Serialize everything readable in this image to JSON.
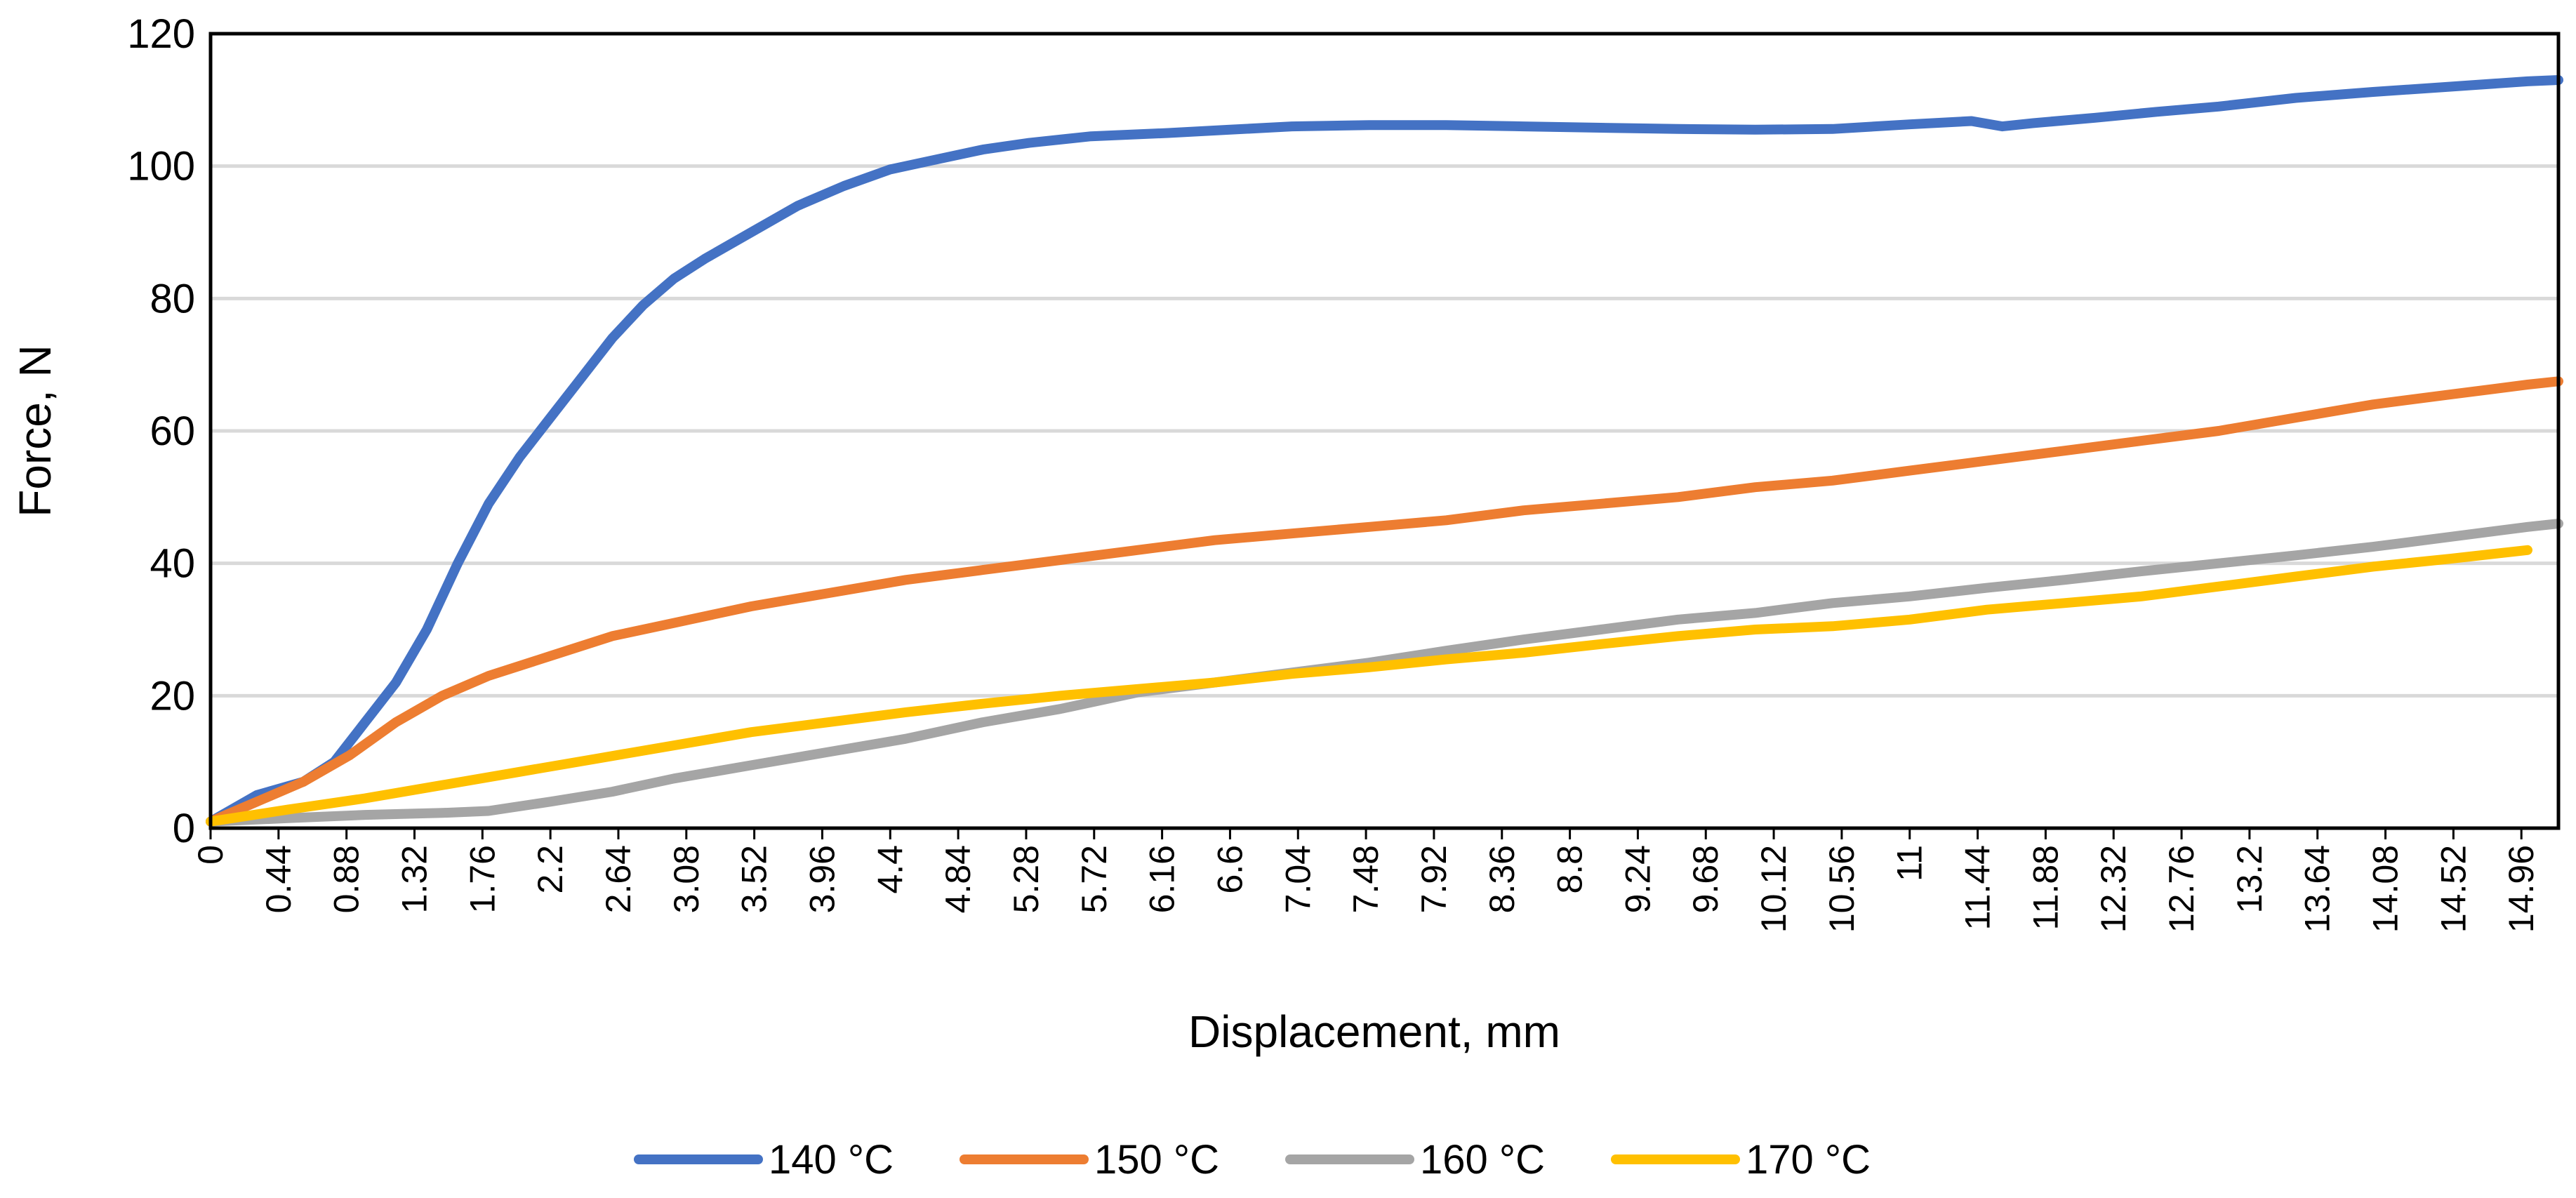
{
  "chart_data": {
    "type": "line",
    "title": "",
    "xlabel": "Displacement, mm",
    "ylabel": "Force, N",
    "ylim": [
      0,
      120
    ],
    "xlim": [
      0,
      15.2
    ],
    "yticks": [
      "0",
      "20",
      "40",
      "60",
      "80",
      "100",
      "120"
    ],
    "xtick_labels": [
      "0",
      "0.44",
      "0.88",
      "1.32",
      "1.76",
      "2.2",
      "2.64",
      "3.08",
      "3.52",
      "3.96",
      "4.4",
      "4.84",
      "5.28",
      "5.72",
      "6.16",
      "6.6",
      "7.04",
      "7.48",
      "7.92",
      "8.36",
      "8.8",
      "9.24",
      "9.68",
      "10.12",
      "10.56",
      "11",
      "11.44",
      "11.88",
      "12.32",
      "12.76",
      "13.2",
      "13.64",
      "14.08",
      "14.52",
      "14.96"
    ],
    "grid": true,
    "legend_position": "bottom",
    "series": [
      {
        "name": "140 °C",
        "color": "#4472C4",
        "x": [
          0,
          0.3,
          0.6,
          0.8,
          1.0,
          1.2,
          1.4,
          1.6,
          1.8,
          2.0,
          2.2,
          2.4,
          2.6,
          2.8,
          3.0,
          3.2,
          3.5,
          3.8,
          4.1,
          4.4,
          4.7,
          5.0,
          5.3,
          5.7,
          6.2,
          6.6,
          7.0,
          7.5,
          8.0,
          8.5,
          9.0,
          9.5,
          10.0,
          10.5,
          11.0,
          11.4,
          11.6,
          11.8,
          12.2,
          12.6,
          13.0,
          13.5,
          14.0,
          14.5,
          15.0,
          15.2
        ],
        "y": [
          1,
          5,
          7,
          10,
          16,
          22,
          30,
          40,
          49,
          56,
          62,
          68,
          74,
          79,
          83,
          86,
          90,
          94,
          97,
          99.5,
          101,
          102.5,
          103.5,
          104.5,
          105,
          105.5,
          106,
          106.2,
          106.2,
          106,
          105.8,
          105.6,
          105.5,
          105.6,
          106.3,
          106.8,
          106,
          106.5,
          107.3,
          108.2,
          109,
          110.3,
          111.2,
          112,
          112.8,
          113
        ]
      },
      {
        "name": "150 °C",
        "color": "#ED7D31",
        "x": [
          0,
          0.3,
          0.6,
          0.9,
          1.2,
          1.5,
          1.8,
          2.2,
          2.6,
          3.0,
          3.5,
          4.0,
          4.5,
          5.0,
          5.5,
          6.0,
          6.5,
          7.0,
          7.5,
          8.0,
          8.5,
          9.0,
          9.5,
          10.0,
          10.5,
          11.0,
          11.5,
          12.0,
          12.5,
          13.0,
          13.5,
          14.0,
          14.5,
          15.0,
          15.2
        ],
        "y": [
          1,
          4,
          7,
          11,
          16,
          20,
          23,
          26,
          29,
          31,
          33.5,
          35.5,
          37.5,
          39,
          40.5,
          42,
          43.5,
          44.5,
          45.5,
          46.5,
          48,
          49,
          50,
          51.5,
          52.5,
          54,
          55.5,
          57,
          58.5,
          60,
          62,
          64,
          65.5,
          67,
          67.5
        ]
      },
      {
        "name": "160 °C",
        "color": "#A5A5A5",
        "x": [
          0,
          0.5,
          1.0,
          1.5,
          1.8,
          2.2,
          2.6,
          3.0,
          3.5,
          4.0,
          4.5,
          5.0,
          5.5,
          6.0,
          6.5,
          7.0,
          7.5,
          8.0,
          8.5,
          9.0,
          9.5,
          10.0,
          10.5,
          11.0,
          11.5,
          12.0,
          12.5,
          13.0,
          13.5,
          14.0,
          14.5,
          15.0,
          15.2
        ],
        "y": [
          1,
          1.5,
          2,
          2.3,
          2.6,
          4,
          5.5,
          7.5,
          9.5,
          11.5,
          13.5,
          16,
          18,
          20.5,
          22,
          23.5,
          25,
          26.8,
          28.5,
          30,
          31.5,
          32.5,
          34,
          35,
          36.3,
          37.5,
          38.8,
          40,
          41.2,
          42.5,
          44,
          45.5,
          46
        ]
      },
      {
        "name": "170 °C",
        "color": "#FFC000",
        "x": [
          0,
          0.5,
          1.0,
          1.5,
          2.0,
          2.5,
          3.0,
          3.5,
          4.0,
          4.5,
          5.0,
          5.5,
          6.0,
          6.5,
          7.0,
          7.5,
          8.0,
          8.5,
          9.0,
          9.5,
          10.0,
          10.5,
          11.0,
          11.5,
          12.0,
          12.5,
          13.0,
          13.5,
          14.0,
          14.5,
          15.0
        ],
        "y": [
          1,
          2.8,
          4.5,
          6.5,
          8.5,
          10.5,
          12.5,
          14.5,
          16,
          17.5,
          18.8,
          20,
          21,
          22,
          23.3,
          24.3,
          25.5,
          26.5,
          27.8,
          29,
          30,
          30.5,
          31.5,
          33,
          34,
          35,
          36.5,
          38,
          39.5,
          40.7,
          42
        ]
      }
    ]
  }
}
